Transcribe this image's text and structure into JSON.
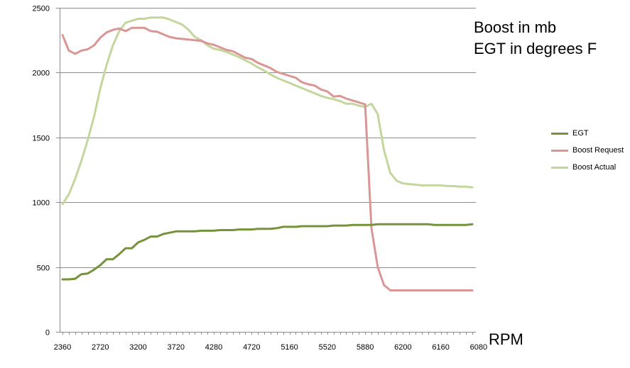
{
  "annotations": {
    "line1": "Boost in mb",
    "line2": "EGT in degrees F"
  },
  "chart_data": {
    "type": "line",
    "xlabel": "RPM",
    "ylabel": "",
    "ylim": [
      0,
      2500
    ],
    "yticks": [
      0,
      500,
      1000,
      1500,
      2000,
      2500
    ],
    "x_tick_labels": [
      "2360",
      "2720",
      "3200",
      "3720",
      "4280",
      "4720",
      "5160",
      "5520",
      "5880",
      "6200",
      "6160",
      "6080"
    ],
    "grid": "horizontal",
    "legend": "right",
    "num_points": 66,
    "series": [
      {
        "name": "EGT",
        "color": "#76933c",
        "values": [
          405,
          405,
          410,
          445,
          450,
          480,
          515,
          560,
          560,
          600,
          645,
          645,
          690,
          710,
          735,
          735,
          755,
          765,
          775,
          775,
          775,
          775,
          780,
          780,
          780,
          785,
          785,
          785,
          790,
          790,
          790,
          795,
          795,
          795,
          800,
          810,
          810,
          810,
          815,
          815,
          815,
          815,
          815,
          820,
          820,
          820,
          825,
          825,
          825,
          825,
          830,
          830,
          830,
          830,
          830,
          830,
          830,
          830,
          830,
          825,
          825,
          825,
          825,
          825,
          825,
          830
        ]
      },
      {
        "name": "Boost Request",
        "color": "#d99694",
        "values": [
          2290,
          2170,
          2145,
          2170,
          2180,
          2210,
          2270,
          2310,
          2330,
          2340,
          2320,
          2345,
          2345,
          2345,
          2320,
          2315,
          2295,
          2275,
          2265,
          2260,
          2255,
          2250,
          2245,
          2225,
          2215,
          2195,
          2175,
          2165,
          2140,
          2115,
          2105,
          2075,
          2055,
          2035,
          2005,
          1990,
          1975,
          1960,
          1925,
          1910,
          1900,
          1870,
          1855,
          1815,
          1820,
          1800,
          1785,
          1770,
          1755,
          800,
          500,
          360,
          320,
          320,
          320,
          320,
          320,
          320,
          320,
          320,
          320,
          320,
          320,
          320,
          320,
          320
        ]
      },
      {
        "name": "Boost Actual",
        "color": "#c3d69b",
        "values": [
          985,
          1060,
          1180,
          1320,
          1480,
          1660,
          1880,
          2060,
          2210,
          2320,
          2385,
          2400,
          2415,
          2415,
          2425,
          2425,
          2425,
          2410,
          2390,
          2370,
          2330,
          2275,
          2250,
          2210,
          2185,
          2175,
          2160,
          2140,
          2120,
          2095,
          2070,
          2040,
          2015,
          1985,
          1960,
          1940,
          1920,
          1900,
          1880,
          1860,
          1840,
          1820,
          1805,
          1795,
          1780,
          1760,
          1760,
          1745,
          1735,
          1760,
          1680,
          1400,
          1225,
          1165,
          1145,
          1140,
          1135,
          1130,
          1130,
          1130,
          1130,
          1125,
          1125,
          1120,
          1120,
          1115
        ]
      }
    ]
  }
}
